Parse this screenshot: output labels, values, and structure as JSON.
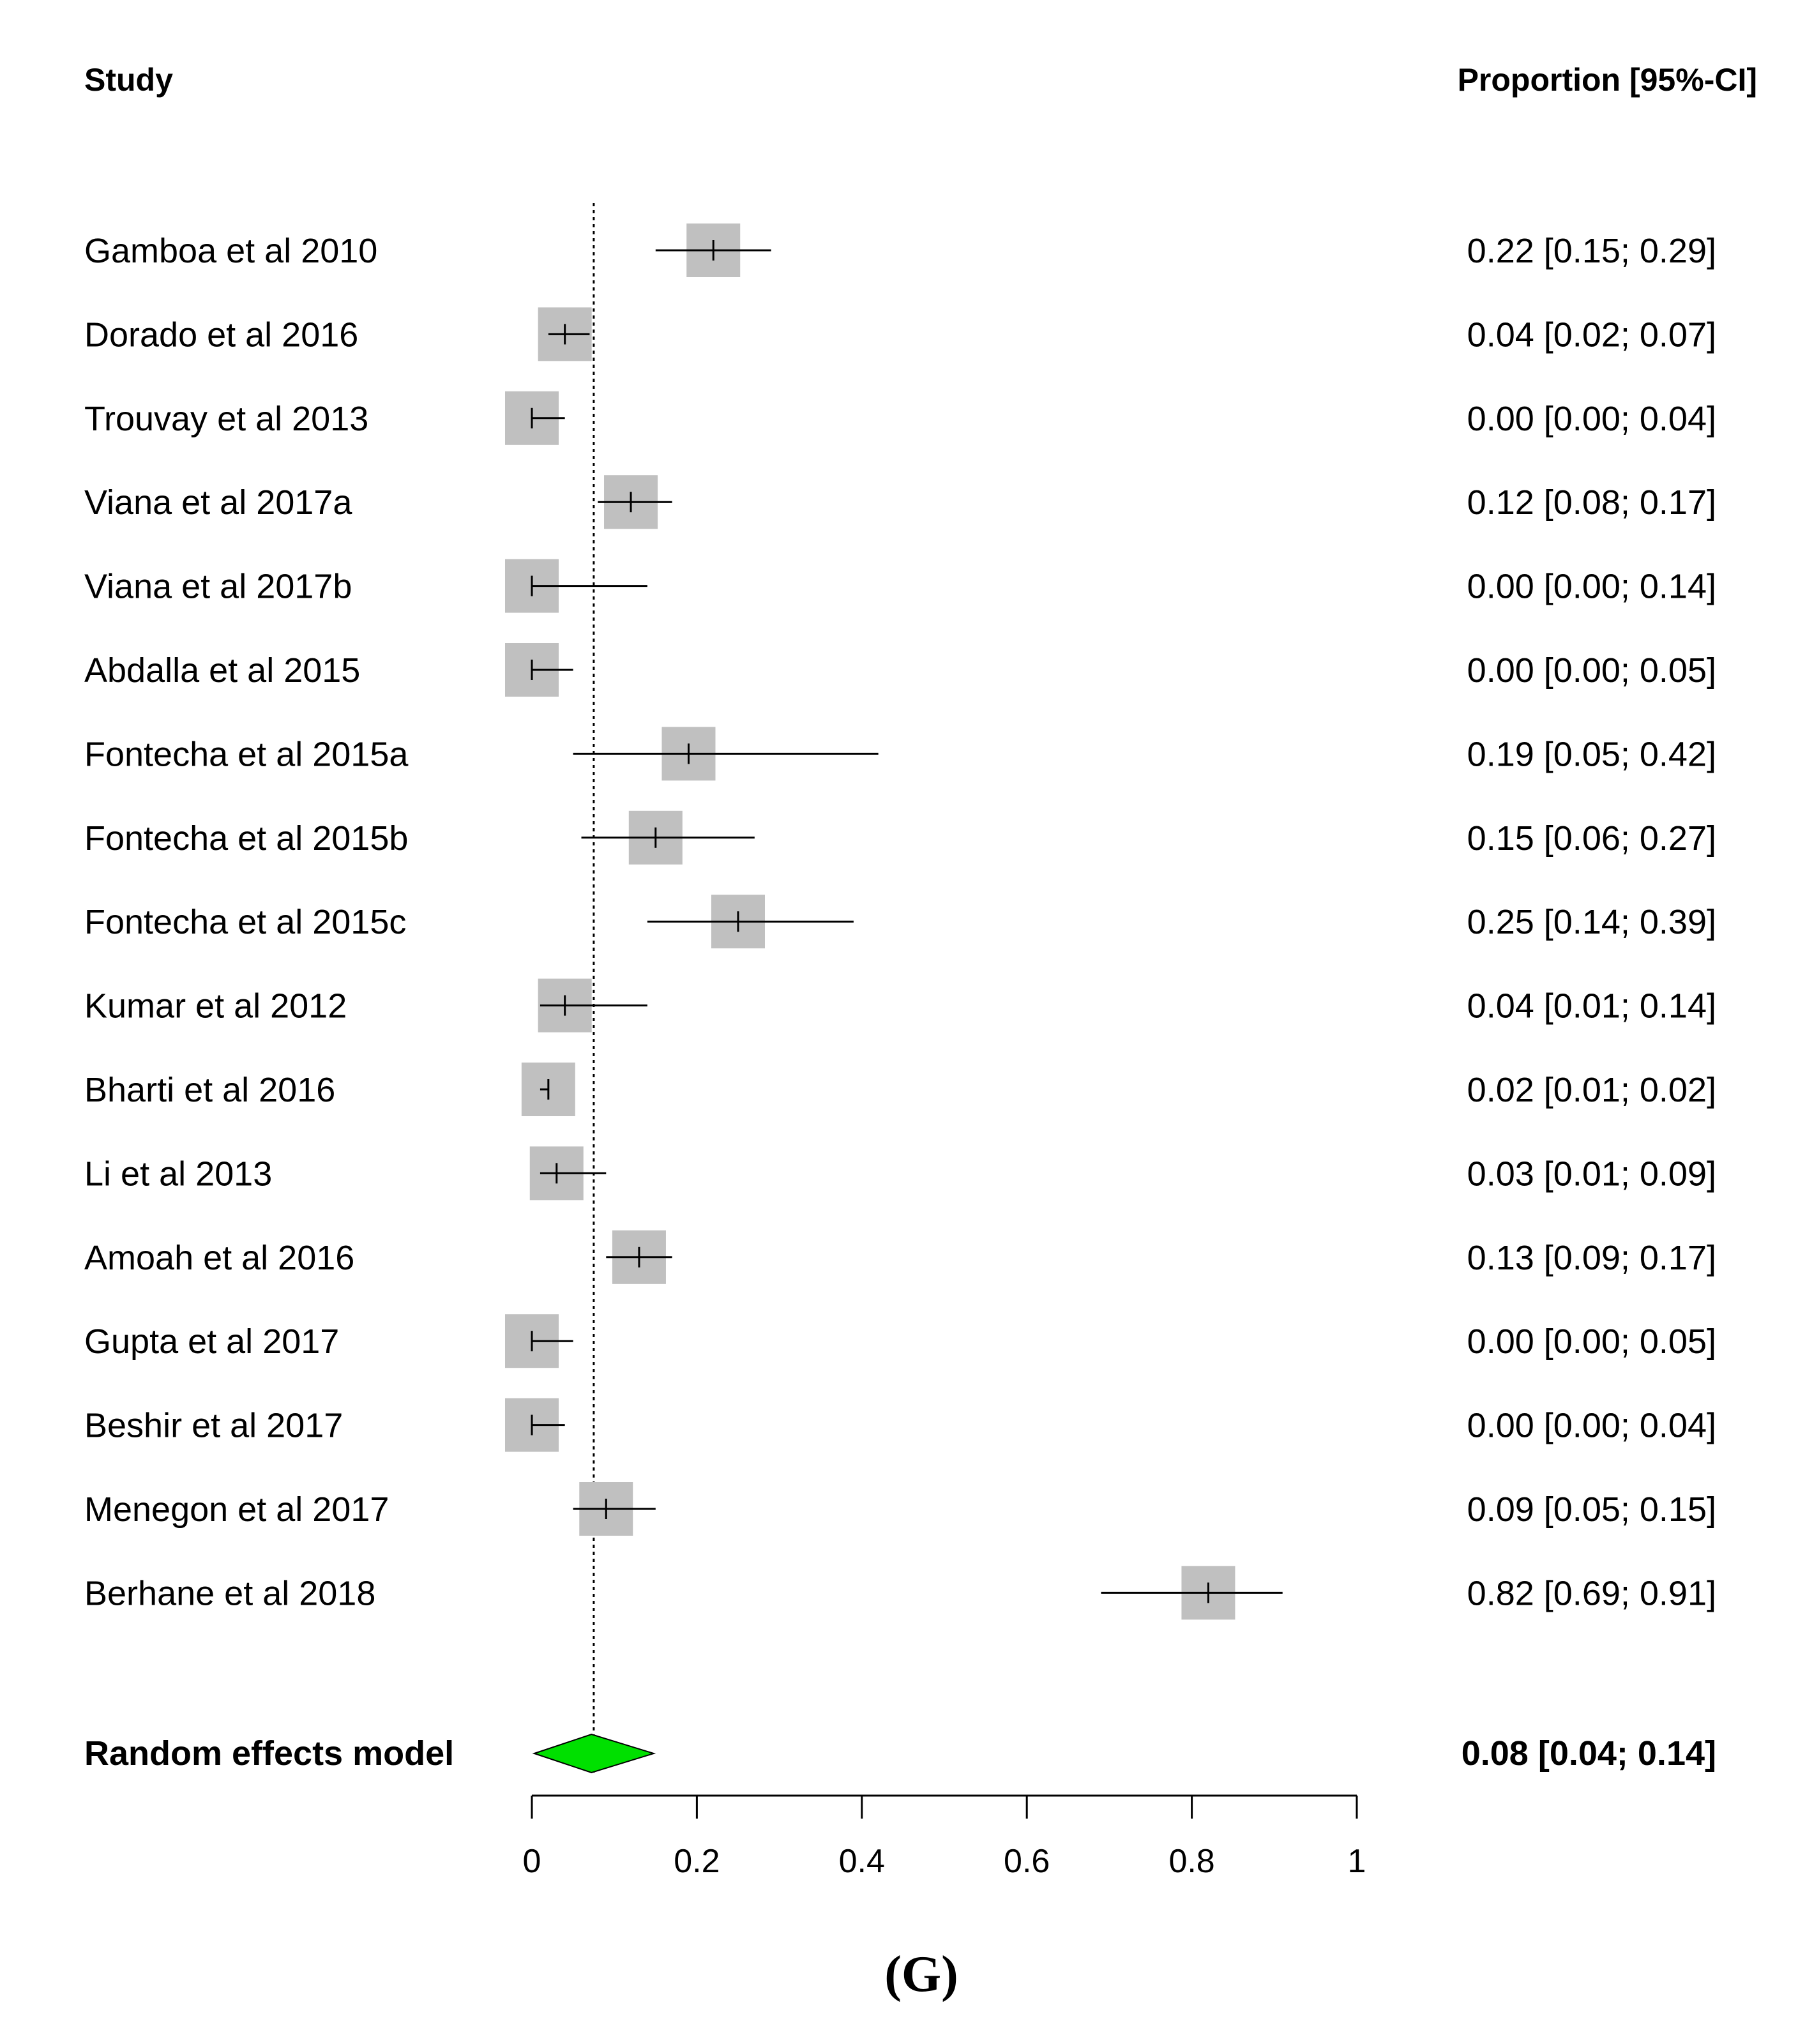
{
  "chart_data": {
    "type": "forest",
    "header_left": "Study",
    "header_right": "Proportion [95%-CI]",
    "studies": [
      {
        "name": "Gamboa et al 2010",
        "est": 0.22,
        "lo": 0.15,
        "hi": 0.29,
        "ci_text": "0.22 [0.15; 0.29]"
      },
      {
        "name": "Dorado et al 2016",
        "est": 0.04,
        "lo": 0.02,
        "hi": 0.07,
        "ci_text": "0.04 [0.02; 0.07]"
      },
      {
        "name": "Trouvay et al 2013",
        "est": 0.0,
        "lo": 0.0,
        "hi": 0.04,
        "ci_text": "0.00 [0.00; 0.04]"
      },
      {
        "name": "Viana et al 2017a",
        "est": 0.12,
        "lo": 0.08,
        "hi": 0.17,
        "ci_text": "0.12 [0.08; 0.17]"
      },
      {
        "name": "Viana et al 2017b",
        "est": 0.0,
        "lo": 0.0,
        "hi": 0.14,
        "ci_text": "0.00 [0.00; 0.14]"
      },
      {
        "name": "Abdalla et al 2015",
        "est": 0.0,
        "lo": 0.0,
        "hi": 0.05,
        "ci_text": "0.00 [0.00; 0.05]"
      },
      {
        "name": "Fontecha et al 2015a",
        "est": 0.19,
        "lo": 0.05,
        "hi": 0.42,
        "ci_text": "0.19 [0.05; 0.42]"
      },
      {
        "name": "Fontecha et al 2015b",
        "est": 0.15,
        "lo": 0.06,
        "hi": 0.27,
        "ci_text": "0.15 [0.06; 0.27]"
      },
      {
        "name": "Fontecha et al 2015c",
        "est": 0.25,
        "lo": 0.14,
        "hi": 0.39,
        "ci_text": "0.25 [0.14; 0.39]"
      },
      {
        "name": "Kumar et al 2012",
        "est": 0.04,
        "lo": 0.01,
        "hi": 0.14,
        "ci_text": "0.04 [0.01; 0.14]"
      },
      {
        "name": "Bharti et al 2016",
        "est": 0.02,
        "lo": 0.01,
        "hi": 0.02,
        "ci_text": "0.02 [0.01; 0.02]"
      },
      {
        "name": "Li et al 2013",
        "est": 0.03,
        "lo": 0.01,
        "hi": 0.09,
        "ci_text": "0.03 [0.01; 0.09]"
      },
      {
        "name": "Amoah et al 2016",
        "est": 0.13,
        "lo": 0.09,
        "hi": 0.17,
        "ci_text": "0.13 [0.09; 0.17]"
      },
      {
        "name": "Gupta et al 2017",
        "est": 0.0,
        "lo": 0.0,
        "hi": 0.05,
        "ci_text": "0.00 [0.00; 0.05]"
      },
      {
        "name": "Beshir et al 2017",
        "est": 0.0,
        "lo": 0.0,
        "hi": 0.04,
        "ci_text": "0.00 [0.00; 0.04]"
      },
      {
        "name": "Menegon et al 2017",
        "est": 0.09,
        "lo": 0.05,
        "hi": 0.15,
        "ci_text": "0.09 [0.05; 0.15]"
      },
      {
        "name": "Berhane et al 2018",
        "est": 0.82,
        "lo": 0.69,
        "hi": 0.91,
        "ci_text": "0.82 [0.69; 0.91]"
      }
    ],
    "pooled": {
      "name": "Random effects model",
      "est": 0.08,
      "lo": 0.04,
      "hi": 0.14,
      "ci_text": "0.08 [0.04; 0.14]"
    },
    "reference_line": 0.075,
    "xlim": [
      0,
      1
    ],
    "ticks": [
      0,
      0.2,
      0.4,
      0.6,
      0.8,
      1
    ],
    "tick_labels": [
      "0",
      "0.2",
      "0.4",
      "0.6",
      "0.8",
      "1"
    ],
    "colors": {
      "box": "#c0c0c0",
      "diamond": "#00e000",
      "line": "#000000"
    }
  },
  "caption": "(G)"
}
